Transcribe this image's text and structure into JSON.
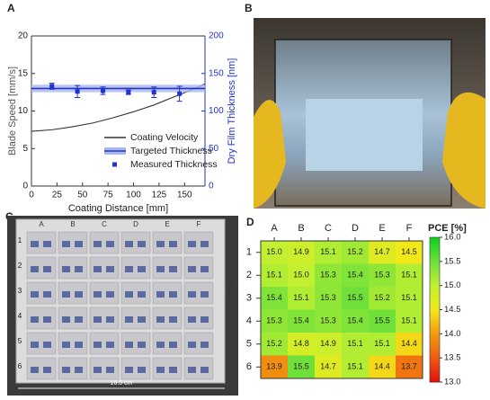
{
  "panel_labels": [
    "A",
    "B",
    "C",
    "D"
  ],
  "photo_c": {
    "columns": [
      "A",
      "B",
      "C",
      "D",
      "E",
      "F"
    ],
    "rows": [
      "1",
      "2",
      "3",
      "4",
      "5",
      "6"
    ],
    "width_label": "16.5 cm",
    "height_label": "16.5 cm"
  },
  "chart_data": [
    {
      "type": "line",
      "xlabel": "Coating Distance [mm]",
      "ylabel": "Blade Speed [mm/s]",
      "y2label": "Dry Film Thickness [nm]",
      "xlim": [
        0,
        170
      ],
      "xticks": [
        0,
        25,
        50,
        75,
        100,
        125,
        150
      ],
      "ylim": [
        0,
        20
      ],
      "yticks": [
        0,
        5,
        10,
        15,
        20
      ],
      "y2lim": [
        0,
        200
      ],
      "y2ticks": [
        0,
        50,
        100,
        150,
        200
      ],
      "y2_color": "#2233cc",
      "series": [
        {
          "name": "Coating Velocity",
          "color": "#333333",
          "x": [
            0,
            20,
            40,
            60,
            80,
            100,
            120,
            140,
            160,
            170
          ],
          "values": [
            7.3,
            7.5,
            7.9,
            8.4,
            9.1,
            9.9,
            10.8,
            11.9,
            13.0,
            13.6
          ]
        },
        {
          "name": "Targeted Thickness",
          "color": "#2233cc",
          "axis": "y2",
          "x": [
            0,
            170
          ],
          "values": [
            130,
            130
          ],
          "band_low": [
            125,
            125
          ],
          "band_high": [
            135,
            135
          ],
          "band_color": "#aab8ee"
        },
        {
          "name": "Measured Thickness",
          "color": "#2233cc",
          "axis": "y2",
          "marker": "square",
          "x": [
            20,
            45,
            70,
            95,
            120,
            145
          ],
          "values": [
            133,
            126,
            127,
            125,
            125,
            123
          ],
          "errors": [
            4,
            8,
            5,
            3,
            7,
            10
          ]
        }
      ]
    },
    {
      "type": "heatmap",
      "x": [
        "A",
        "B",
        "C",
        "D",
        "E",
        "F"
      ],
      "y": [
        "1",
        "2",
        "3",
        "4",
        "5",
        "6"
      ],
      "values": [
        [
          15.0,
          14.9,
          15.1,
          15.2,
          14.7,
          14.5
        ],
        [
          15.1,
          15.0,
          15.3,
          15.4,
          15.3,
          15.1
        ],
        [
          15.4,
          15.1,
          15.3,
          15.5,
          15.2,
          15.1
        ],
        [
          15.3,
          15.4,
          15.3,
          15.4,
          15.5,
          15.1
        ],
        [
          15.2,
          14.8,
          14.9,
          15.1,
          15.1,
          14.4
        ],
        [
          13.9,
          15.5,
          14.7,
          15.1,
          14.4,
          13.7
        ]
      ],
      "value_labels": [
        [
          "15.0",
          "14.9",
          "15.1",
          "15.2",
          "14.7",
          "14.5"
        ],
        [
          "15.1",
          "15.0",
          "15.3",
          "15.4",
          "15.3",
          "15.1"
        ],
        [
          "15.4",
          "15.1",
          "15.3",
          "15.5",
          "15.2",
          "15.1"
        ],
        [
          "15.3",
          "15.4",
          "15.3",
          "15.4",
          "15.5",
          "15.1"
        ],
        [
          "15.2",
          "14.8",
          "14.9",
          "15.1",
          "15.1",
          "14.4"
        ],
        [
          "13.9",
          "15.5",
          "14.7",
          "15.1",
          "14.4",
          "13.7"
        ]
      ],
      "colorbar_title": "PCE [%]",
      "zlim": [
        13.0,
        16.0
      ],
      "zticks": [
        {
          "value": 13.0,
          "label": "13.0"
        },
        {
          "value": 13.5,
          "label": "13.5"
        },
        {
          "value": 14.0,
          "label": "14.0"
        },
        {
          "value": 14.5,
          "label": "14.5"
        },
        {
          "value": 15.0,
          "label": "15.0"
        },
        {
          "value": 15.5,
          "label": "15.5"
        },
        {
          "value": 16.0,
          "label": "16.0"
        }
      ],
      "colormap": [
        "#e01010",
        "#ee5a10",
        "#f29a10",
        "#f2e818",
        "#c2f030",
        "#6fe03a",
        "#10d020"
      ]
    }
  ]
}
